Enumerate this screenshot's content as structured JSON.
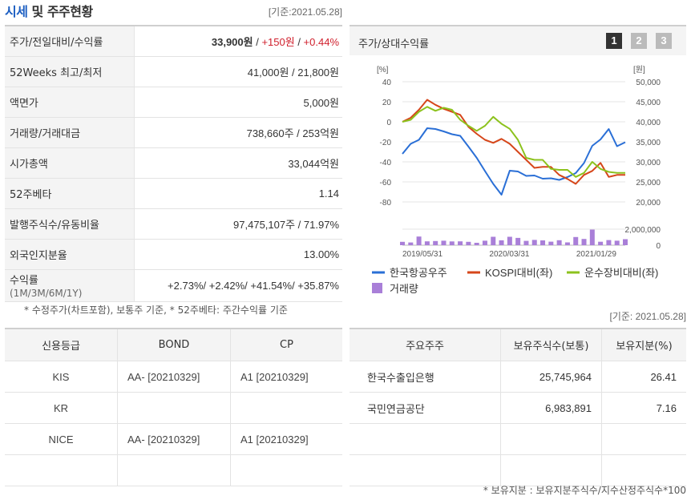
{
  "header": {
    "title_part1": "시세",
    "title_part2": "및 주주현황",
    "as_of": "[기준:2021.05.28]"
  },
  "price_table": {
    "rows": [
      {
        "label": "주가/전일대비/수익률",
        "price": "33,900원",
        "sep1": " / ",
        "change": "+150원",
        "sep2": " / ",
        "rate": "+0.44%"
      },
      {
        "label": "52Weeks 최고/최저",
        "value": "41,000원 / 21,800원"
      },
      {
        "label": "액면가",
        "value": "5,000원"
      },
      {
        "label": "거래량/거래대금",
        "value": "738,660주 / 253억원"
      },
      {
        "label": "시가총액",
        "value": "33,044억원"
      },
      {
        "label": "52주베타",
        "value": "1.14"
      },
      {
        "label": "발행주식수/유동비율",
        "value": "97,475,107주 / 71.97%"
      },
      {
        "label": "외국인지분율",
        "value": "13.00%"
      },
      {
        "label": "수익률",
        "sublabel": "(1M/3M/6M/1Y)",
        "value": "+2.73%/ +2.42%/ +41.54%/ +35.87%"
      }
    ],
    "footnote": "* 수정주가(차트포함), 보통주 기준, * 52주베타: 주간수익률 기준"
  },
  "chart_panel": {
    "title": "주가/상대수익률",
    "period_buttons": [
      "1",
      "2",
      "3"
    ],
    "active_button": "1",
    "as_of": "[기준: 2021.05.28]"
  },
  "chart_data": {
    "type": "line",
    "left_axis_unit": "[%]",
    "right_axis_unit": "[원]",
    "left_ticks": [
      40,
      20,
      0,
      -20,
      -40,
      -60,
      -80
    ],
    "right_ticks": [
      50000,
      45000,
      40000,
      35000,
      30000,
      25000,
      20000
    ],
    "right_tick_labels": [
      "50,000",
      "45,000",
      "40,000",
      "35,000",
      "30,000",
      "25,000",
      "20,000"
    ],
    "volume_ticks": [
      2000000,
      0
    ],
    "volume_tick_labels": [
      "2,000,000",
      "0"
    ],
    "x_tick_labels": [
      "2019/05/31",
      "2020/03/31",
      "2021/01/29"
    ],
    "ylim_left": [
      -80,
      40
    ],
    "ylim_right": [
      20000,
      50000
    ],
    "ylim_volume": [
      0,
      2400000
    ],
    "series": [
      {
        "name": "한국항공우주",
        "color": "#2a6fd6",
        "axis": "right",
        "values": [
          32000,
          34500,
          35500,
          38400,
          38200,
          37600,
          36900,
          36500,
          33800,
          31000,
          27700,
          24500,
          21800,
          27800,
          27600,
          26500,
          26600,
          25800,
          25900,
          25500,
          26200,
          27200,
          29700,
          34000,
          35600,
          38200,
          33900,
          34900
        ]
      },
      {
        "name": "KOSPI대비(좌)",
        "color": "#d6461a",
        "axis": "left",
        "values": [
          0,
          4,
          12,
          22,
          17,
          13,
          10,
          7,
          -5,
          -12,
          -18,
          -21,
          -17,
          -22,
          -30,
          -38,
          -46,
          -45,
          -45,
          -53,
          -57,
          -62,
          -53,
          -49,
          -41,
          -55,
          -53,
          -53
        ]
      },
      {
        "name": "운수장비대비(좌)",
        "color": "#8cc21d",
        "axis": "left",
        "values": [
          0,
          2,
          10,
          15,
          11,
          14,
          12,
          2,
          -4,
          -9,
          -4,
          5,
          -2,
          -7,
          -18,
          -36,
          -38,
          -38,
          -47,
          -48,
          -48,
          -55,
          -51,
          -40,
          -47,
          -50,
          -51,
          -51
        ]
      }
    ],
    "volume": {
      "name": "거래량",
      "color": "#a97fd8",
      "values": [
        420000,
        340000,
        1080000,
        480000,
        520000,
        560000,
        470000,
        480000,
        420000,
        300000,
        560000,
        1050000,
        610000,
        1050000,
        910000,
        540000,
        660000,
        600000,
        440000,
        620000,
        350000,
        1020000,
        780000,
        1950000,
        430000,
        640000,
        560000,
        750000
      ]
    }
  },
  "credit_table": {
    "headers": [
      "신용등급",
      "BOND",
      "CP"
    ],
    "rows": [
      {
        "agency": "KIS",
        "bond": "AA-  [20210329]",
        "cp": "A1  [20210329]"
      },
      {
        "agency": "KR",
        "bond": "",
        "cp": ""
      },
      {
        "agency": "NICE",
        "bond": "AA-  [20210329]",
        "cp": "A1  [20210329]"
      },
      {
        "agency": "",
        "bond": "",
        "cp": ""
      }
    ]
  },
  "holders_table": {
    "headers": [
      "주요주주",
      "보유주식수(보통)",
      "보유지분(%)"
    ],
    "rows": [
      {
        "name": "한국수출입은행",
        "shares": "25,745,964",
        "pct": "26.41"
      },
      {
        "name": "국민연금공단",
        "shares": "6,983,891",
        "pct": "7.16"
      },
      {
        "name": "",
        "shares": "",
        "pct": ""
      },
      {
        "name": "",
        "shares": "",
        "pct": ""
      }
    ],
    "footnote": "* 보유지분 : 보유지분주식수/지수산정주식수*100"
  }
}
